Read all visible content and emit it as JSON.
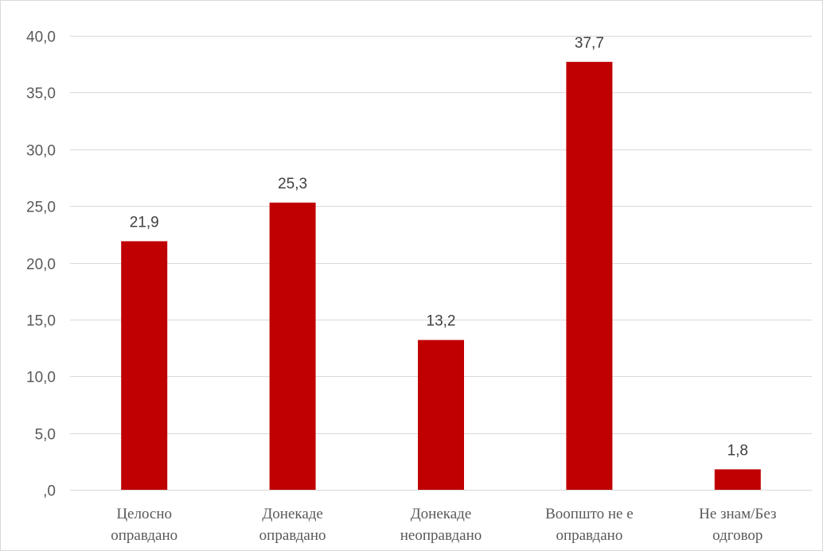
{
  "chart_data": {
    "type": "bar",
    "categories": [
      [
        "Целосно",
        "оправдано"
      ],
      [
        "Донекаде",
        "оправдано"
      ],
      [
        "Донекаде",
        "неоправдано"
      ],
      [
        "Воопшто не е",
        "оправдано"
      ],
      [
        "Не знам/Без",
        "одговор"
      ]
    ],
    "values": [
      21.9,
      25.3,
      13.2,
      37.7,
      1.8
    ],
    "data_labels": [
      "21,9",
      "25,3",
      "13,2",
      "37,7",
      "1,8"
    ],
    "y_ticks": [
      0,
      5,
      10,
      15,
      20,
      25,
      30,
      35,
      40
    ],
    "y_tick_labels": [
      ",0",
      "5,0",
      "10,0",
      "15,0",
      "20,0",
      "25,0",
      "30,0",
      "35,0",
      "40,0"
    ],
    "ylim": [
      0,
      40
    ],
    "grid": true,
    "legend": false,
    "title": "",
    "xlabel": "",
    "ylabel": "",
    "colors": {
      "bar": "#c00000",
      "grid": "#d9d9d9",
      "tick_text": "#595959",
      "data_label_text": "#404040"
    }
  }
}
